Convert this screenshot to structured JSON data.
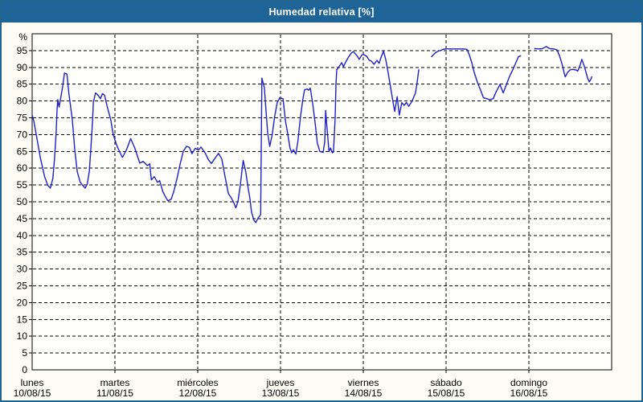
{
  "window": {
    "title": "Humedad relativa [%]"
  },
  "colors": {
    "titlebar_bg": "#1e6496",
    "titlebar_text": "#ffffff",
    "frame_border": "#20648f",
    "page_bg": "#fcfcf5",
    "plot_bg": "#fefefb",
    "axis": "#000000",
    "grid": "#000000",
    "line": "#2020c8"
  },
  "chart_data": {
    "type": "line",
    "title": "Humedad relativa [%]",
    "y_unit_label": "%",
    "ylim": [
      0,
      100
    ],
    "yticks": [
      0,
      5,
      10,
      15,
      20,
      25,
      30,
      35,
      40,
      45,
      50,
      55,
      60,
      65,
      70,
      75,
      80,
      85,
      90,
      95
    ],
    "grid": "dashed horizontal every 5, dashed vertical at each day",
    "legend": "none",
    "x_axis": {
      "unit": "days",
      "days": [
        {
          "name": "lunes",
          "date": "10/08/15"
        },
        {
          "name": "martes",
          "date": "11/08/15"
        },
        {
          "name": "miércoles",
          "date": "12/08/15"
        },
        {
          "name": "jueves",
          "date": "13/08/15"
        },
        {
          "name": "viernes",
          "date": "14/08/15"
        },
        {
          "name": "sábado",
          "date": "15/08/15"
        },
        {
          "name": "domingo",
          "date": "16/08/15"
        }
      ]
    },
    "series": [
      {
        "name": "Humedad relativa",
        "color": "#2020c8",
        "x_unit": "days_since_2015-08-10_00:00",
        "segments": [
          [
            [
              0.0,
              75.8
            ],
            [
              0.02,
              74
            ],
            [
              0.05,
              70
            ],
            [
              0.1,
              63
            ],
            [
              0.15,
              57.5
            ],
            [
              0.19,
              54.8
            ],
            [
              0.22,
              54.1
            ],
            [
              0.25,
              57
            ],
            [
              0.27,
              62.7
            ],
            [
              0.29,
              70.8
            ],
            [
              0.3,
              77
            ],
            [
              0.31,
              80.4
            ],
            [
              0.325,
              78.2
            ],
            [
              0.35,
              81.5
            ],
            [
              0.37,
              84.5
            ],
            [
              0.39,
              88.3
            ],
            [
              0.42,
              88.0
            ],
            [
              0.445,
              82
            ],
            [
              0.485,
              74.4
            ],
            [
              0.515,
              65.5
            ],
            [
              0.545,
              59
            ],
            [
              0.58,
              55.9
            ],
            [
              0.61,
              54.9
            ],
            [
              0.64,
              54.1
            ],
            [
              0.665,
              55.2
            ],
            [
              0.69,
              59
            ],
            [
              0.71,
              66
            ],
            [
              0.73,
              74.4
            ],
            [
              0.74,
              79.7
            ],
            [
              0.765,
              82.4
            ],
            [
              0.79,
              81.9
            ],
            [
              0.825,
              80.7
            ],
            [
              0.85,
              82.2
            ],
            [
              0.875,
              81.7
            ],
            [
              0.905,
              78.5
            ],
            [
              0.95,
              74.4
            ],
            [
              0.98,
              70
            ],
            [
              1.02,
              66.9
            ],
            [
              1.05,
              65.2
            ],
            [
              1.09,
              63.2
            ],
            [
              1.14,
              65.5
            ],
            [
              1.19,
              68.8
            ],
            [
              1.24,
              66
            ],
            [
              1.3,
              61.5
            ],
            [
              1.34,
              62
            ],
            [
              1.39,
              60.8
            ],
            [
              1.42,
              61.3
            ],
            [
              1.44,
              56.5
            ],
            [
              1.475,
              57.5
            ],
            [
              1.515,
              55.8
            ],
            [
              1.54,
              56.3
            ],
            [
              1.58,
              53
            ],
            [
              1.61,
              51.5
            ],
            [
              1.64,
              50.3
            ],
            [
              1.68,
              50.8
            ],
            [
              1.71,
              53
            ],
            [
              1.75,
              57
            ],
            [
              1.79,
              61.5
            ],
            [
              1.825,
              65
            ],
            [
              1.865,
              66.5
            ],
            [
              1.9,
              66.2
            ],
            [
              1.93,
              64.3
            ],
            [
              1.97,
              65.9
            ],
            [
              2.01,
              65.4
            ],
            [
              2.04,
              66.3
            ],
            [
              2.09,
              64.5
            ],
            [
              2.13,
              62.5
            ],
            [
              2.165,
              61.4
            ],
            [
              2.21,
              63
            ],
            [
              2.25,
              64.4
            ],
            [
              2.29,
              62.8
            ],
            [
              2.33,
              57.5
            ],
            [
              2.37,
              52.5
            ],
            [
              2.41,
              51
            ],
            [
              2.44,
              49.5
            ],
            [
              2.46,
              48.2
            ],
            [
              2.485,
              50
            ],
            [
              2.515,
              55
            ],
            [
              2.535,
              59.5
            ],
            [
              2.55,
              62.3
            ],
            [
              2.58,
              59
            ],
            [
              2.61,
              54
            ],
            [
              2.63,
              51
            ],
            [
              2.65,
              47
            ],
            [
              2.68,
              44.5
            ],
            [
              2.7,
              43.8
            ],
            [
              2.73,
              45.2
            ],
            [
              2.76,
              46.2
            ],
            [
              2.775,
              86.8
            ],
            [
              2.805,
              84
            ],
            [
              2.825,
              77
            ],
            [
              2.845,
              70.5
            ],
            [
              2.87,
              66.5
            ],
            [
              2.9,
              70
            ],
            [
              2.93,
              75.5
            ],
            [
              2.96,
              79.5
            ],
            [
              2.99,
              80.9
            ],
            [
              3.03,
              80.7
            ],
            [
              3.06,
              74
            ],
            [
              3.085,
              70.5
            ],
            [
              3.115,
              66
            ],
            [
              3.135,
              64.6
            ],
            [
              3.155,
              65.5
            ],
            [
              3.185,
              64.2
            ],
            [
              3.21,
              68
            ],
            [
              3.24,
              75
            ],
            [
              3.27,
              80.5
            ],
            [
              3.29,
              83.3
            ],
            [
              3.32,
              83.6
            ],
            [
              3.34,
              83.2
            ],
            [
              3.36,
              83.8
            ],
            [
              3.39,
              79
            ],
            [
              3.42,
              73
            ],
            [
              3.445,
              67.5
            ],
            [
              3.475,
              65
            ],
            [
              3.515,
              64.7
            ],
            [
              3.535,
              68
            ],
            [
              3.545,
              77.2
            ],
            [
              3.565,
              71
            ],
            [
              3.585,
              65
            ],
            [
              3.605,
              66
            ],
            [
              3.625,
              64.6
            ],
            [
              3.64,
              64.8
            ],
            [
              3.66,
              75
            ],
            [
              3.67,
              85
            ],
            [
              3.68,
              89.3
            ],
            [
              3.71,
              90.3
            ],
            [
              3.74,
              91.4
            ],
            [
              3.76,
              90.2
            ],
            [
              3.785,
              91.5
            ],
            [
              3.815,
              92.8
            ],
            [
              3.855,
              94.3
            ],
            [
              3.88,
              94.7
            ],
            [
              3.92,
              93.6
            ],
            [
              3.95,
              92.4
            ],
            [
              3.98,
              93.6
            ],
            [
              4.0,
              93.9
            ],
            [
              4.04,
              93.3
            ],
            [
              4.07,
              92.2
            ],
            [
              4.1,
              91.8
            ],
            [
              4.13,
              90.9
            ],
            [
              4.165,
              92.1
            ],
            [
              4.19,
              91.2
            ],
            [
              4.215,
              93
            ],
            [
              4.245,
              94.8
            ],
            [
              4.27,
              92.5
            ],
            [
              4.3,
              88.5
            ],
            [
              4.33,
              84
            ],
            [
              4.36,
              79.5
            ],
            [
              4.38,
              76.9
            ],
            [
              4.41,
              81.3
            ],
            [
              4.435,
              75.8
            ],
            [
              4.465,
              79.5
            ],
            [
              4.495,
              78.7
            ],
            [
              4.52,
              79.6
            ],
            [
              4.55,
              78.4
            ],
            [
              4.59,
              80
            ],
            [
              4.63,
              82.4
            ],
            [
              4.65,
              85.5
            ],
            [
              4.67,
              89.3
            ]
          ],
          [
            [
              4.825,
              93.2
            ],
            [
              4.865,
              94.2
            ],
            [
              4.9,
              94.8
            ],
            [
              4.93,
              95.0
            ],
            [
              4.97,
              95.4
            ],
            [
              5.0,
              95.5
            ],
            [
              5.1,
              95.5
            ],
            [
              5.19,
              95.5
            ],
            [
              5.25,
              95.4
            ],
            [
              5.28,
              93.8
            ],
            [
              5.31,
              91.5
            ],
            [
              5.34,
              88.5
            ],
            [
              5.38,
              85.5
            ],
            [
              5.42,
              83
            ],
            [
              5.45,
              81
            ],
            [
              5.5,
              80.6
            ],
            [
              5.53,
              80.4
            ],
            [
              5.57,
              80.7
            ],
            [
              5.6,
              82.5
            ],
            [
              5.65,
              84.9
            ],
            [
              5.69,
              82.4
            ],
            [
              5.73,
              85
            ],
            [
              5.77,
              87.5
            ],
            [
              5.81,
              89.5
            ],
            [
              5.845,
              91.5
            ],
            [
              5.875,
              93.2
            ],
            [
              5.9,
              93.4
            ]
          ],
          [
            [
              6.07,
              95.6
            ],
            [
              6.12,
              95.5
            ],
            [
              6.165,
              95.6
            ],
            [
              6.21,
              96.2
            ],
            [
              6.25,
              95.6
            ],
            [
              6.3,
              95.5
            ],
            [
              6.34,
              95.2
            ],
            [
              6.37,
              93.5
            ],
            [
              6.4,
              91
            ],
            [
              6.43,
              88
            ],
            [
              6.44,
              87.2
            ],
            [
              6.47,
              88.6
            ],
            [
              6.5,
              89.3
            ],
            [
              6.53,
              89.4
            ],
            [
              6.57,
              89.2
            ],
            [
              6.59,
              88.9
            ],
            [
              6.62,
              90.8
            ],
            [
              6.64,
              92.4
            ],
            [
              6.67,
              90.3
            ],
            [
              6.69,
              88.5
            ],
            [
              6.71,
              86.8
            ],
            [
              6.73,
              85.7
            ],
            [
              6.75,
              86.5
            ],
            [
              6.76,
              87.2
            ]
          ]
        ]
      }
    ]
  }
}
